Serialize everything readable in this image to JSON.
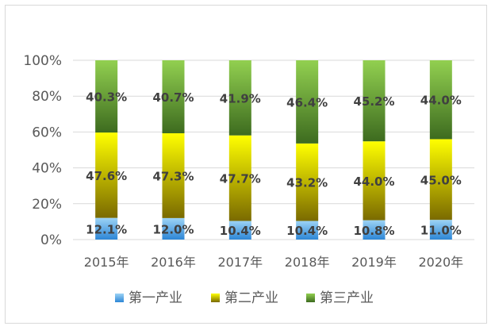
{
  "chart_data": {
    "type": "bar",
    "stacked": true,
    "percent_stacked": true,
    "title": "",
    "xlabel": "",
    "ylabel": "",
    "categories": [
      "2015年",
      "2016年",
      "2017年",
      "2018年",
      "2019年",
      "2020年"
    ],
    "ylim": [
      0,
      100
    ],
    "yticks": [
      "0%",
      "20%",
      "40%",
      "60%",
      "80%",
      "100%"
    ],
    "grid": true,
    "legend_position": "bottom",
    "series": [
      {
        "name": "第一产业",
        "values": [
          12.1,
          12.0,
          10.4,
          10.4,
          10.8,
          11.0
        ],
        "labels": [
          "12.1%",
          "12.0%",
          "10.4%",
          "10.4%",
          "10.8%",
          "11.0%"
        ],
        "color_top": "#9dd3f5",
        "color_bottom": "#2d86d6"
      },
      {
        "name": "第二产业",
        "values": [
          47.6,
          47.3,
          47.7,
          43.2,
          44.0,
          45.0
        ],
        "labels": [
          "47.6%",
          "47.3%",
          "47.7%",
          "43.2%",
          "44.0%",
          "45.0%"
        ],
        "color_top": "#ffff00",
        "color_bottom": "#7a6a00"
      },
      {
        "name": "第三产业",
        "values": [
          40.3,
          40.7,
          41.9,
          46.4,
          45.2,
          44.0
        ],
        "labels": [
          "40.3%",
          "40.7%",
          "41.9%",
          "46.4%",
          "45.2%",
          "44.0%"
        ],
        "color_top": "#92d050",
        "color_bottom": "#3d6b1f"
      }
    ]
  }
}
